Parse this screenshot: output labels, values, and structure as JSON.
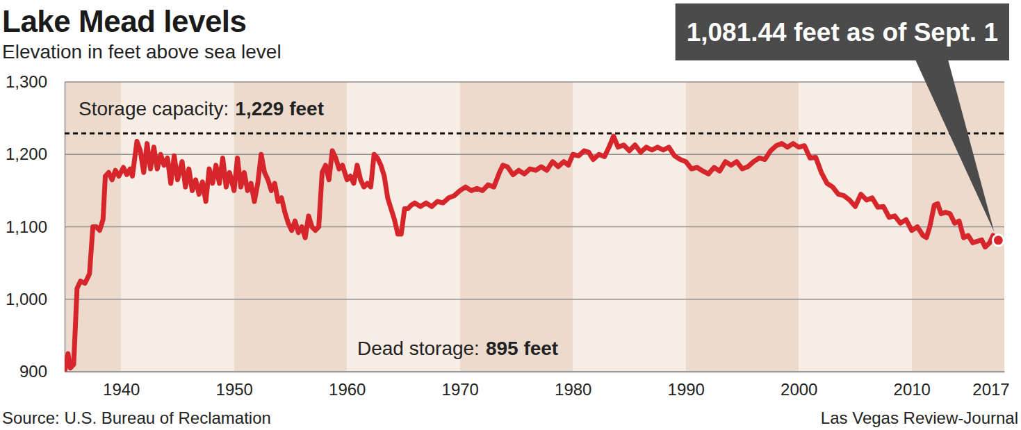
{
  "chart_data": {
    "type": "line",
    "title": "Lake Mead levels",
    "subtitle": "Elevation in feet above sea level",
    "source": "Source: U.S. Bureau of Reclamation",
    "credit": "Las Vegas Review-Journal",
    "color": "#d7262b",
    "grid": true,
    "xlim": [
      1935,
      2018.2
    ],
    "xticks": [
      1940,
      1950,
      1960,
      1970,
      1980,
      1990,
      2000,
      2010,
      2017
    ],
    "ylim": [
      900,
      1300
    ],
    "yticks": [
      900,
      {
        "value": 1000,
        "label": "1,000"
      },
      {
        "value": 1100,
        "label": "1,100"
      },
      {
        "value": 1200,
        "label": "1,200"
      },
      {
        "value": 1300,
        "label": "1,300"
      }
    ],
    "annotations": [
      {
        "text": "Storage capacity:",
        "value_label": "1,229 feet",
        "value": 1229
      },
      {
        "text": "Dead storage:",
        "value_label": "895 feet",
        "value": 895
      }
    ],
    "callout": {
      "text": "1,081.44 feet as of Sept. 1",
      "x": 2017.67,
      "value": 1081.44
    },
    "x": [
      1935.0,
      1935.3,
      1935.5,
      1935.8,
      1936.1,
      1936.4,
      1936.8,
      1937.2,
      1937.5,
      1937.8,
      1938.1,
      1938.4,
      1938.6,
      1938.9,
      1939.2,
      1939.5,
      1939.8,
      1940.2,
      1940.5,
      1940.8,
      1941.0,
      1941.4,
      1941.7,
      1942.0,
      1942.3,
      1942.6,
      1942.9,
      1943.2,
      1943.5,
      1943.8,
      1944.1,
      1944.4,
      1944.7,
      1945.0,
      1945.4,
      1945.7,
      1946.0,
      1946.3,
      1946.6,
      1946.9,
      1947.2,
      1947.5,
      1947.8,
      1948.1,
      1948.4,
      1948.7,
      1949.0,
      1949.3,
      1949.6,
      1950.0,
      1950.3,
      1950.6,
      1950.9,
      1951.2,
      1951.5,
      1951.8,
      1952.1,
      1952.4,
      1952.7,
      1953.0,
      1953.3,
      1953.6,
      1953.9,
      1954.2,
      1954.5,
      1954.8,
      1955.1,
      1955.4,
      1955.7,
      1956.0,
      1956.3,
      1956.6,
      1956.9,
      1957.2,
      1957.5,
      1957.8,
      1958.1,
      1958.4,
      1958.7,
      1959.0,
      1959.3,
      1959.6,
      1960.0,
      1960.3,
      1960.6,
      1960.9,
      1961.2,
      1961.5,
      1961.8,
      1962.1,
      1962.4,
      1962.7,
      1963.0,
      1963.3,
      1963.6,
      1963.9,
      1964.2,
      1964.5,
      1964.8,
      1965.1,
      1965.4,
      1965.7,
      1966.0,
      1966.5,
      1967.0,
      1967.5,
      1968.0,
      1968.5,
      1969.0,
      1969.5,
      1970.0,
      1970.5,
      1971.0,
      1971.5,
      1972.0,
      1972.5,
      1973.0,
      1973.5,
      1973.8,
      1974.2,
      1974.7,
      1975.2,
      1975.7,
      1976.2,
      1976.7,
      1977.2,
      1977.7,
      1978.2,
      1978.7,
      1979.2,
      1979.6,
      1980.0,
      1980.5,
      1981.0,
      1981.4,
      1981.8,
      1982.3,
      1982.8,
      1983.2,
      1983.6,
      1984.0,
      1984.5,
      1985.0,
      1985.5,
      1986.0,
      1986.5,
      1987.0,
      1987.5,
      1988.0,
      1988.5,
      1989.0,
      1989.5,
      1990.0,
      1990.5,
      1991.0,
      1991.5,
      1992.0,
      1992.5,
      1993.0,
      1993.5,
      1994.0,
      1994.5,
      1995.0,
      1995.5,
      1996.0,
      1996.5,
      1997.0,
      1997.5,
      1998.0,
      1998.5,
      1999.0,
      1999.5,
      2000.0,
      2000.5,
      2001.0,
      2001.5,
      2002.0,
      2002.5,
      2003.0,
      2003.5,
      2004.0,
      2004.5,
      2005.0,
      2005.5,
      2006.0,
      2006.5,
      2007.0,
      2007.5,
      2008.0,
      2008.5,
      2009.0,
      2009.5,
      2010.0,
      2010.5,
      2011.0,
      2011.3,
      2011.6,
      2012.0,
      2012.3,
      2012.6,
      2013.0,
      2013.4,
      2013.8,
      2014.2,
      2014.6,
      2015.0,
      2015.4,
      2015.8,
      2016.2,
      2016.5,
      2016.9,
      2017.2
    ],
    "values": [
      900,
      925,
      905,
      910,
      1015,
      1025,
      1022,
      1035,
      1100,
      1100,
      1095,
      1110,
      1170,
      1175,
      1165,
      1178,
      1170,
      1182,
      1172,
      1180,
      1170,
      1218,
      1205,
      1175,
      1215,
      1180,
      1210,
      1180,
      1200,
      1185,
      1195,
      1160,
      1198,
      1165,
      1190,
      1155,
      1180,
      1150,
      1165,
      1145,
      1162,
      1135,
      1180,
      1160,
      1185,
      1160,
      1195,
      1155,
      1175,
      1150,
      1195,
      1155,
      1175,
      1150,
      1160,
      1135,
      1160,
      1200,
      1175,
      1165,
      1150,
      1160,
      1135,
      1140,
      1120,
      1105,
      1095,
      1108,
      1092,
      1100,
      1085,
      1115,
      1100,
      1095,
      1100,
      1175,
      1185,
      1165,
      1205,
      1195,
      1180,
      1185,
      1165,
      1170,
      1160,
      1185,
      1165,
      1155,
      1160,
      1155,
      1200,
      1195,
      1185,
      1170,
      1140,
      1125,
      1110,
      1090,
      1090,
      1125,
      1125,
      1130,
      1133,
      1128,
      1133,
      1128,
      1135,
      1133,
      1140,
      1143,
      1150,
      1155,
      1150,
      1153,
      1150,
      1158,
      1155,
      1175,
      1185,
      1183,
      1172,
      1178,
      1173,
      1180,
      1178,
      1183,
      1178,
      1190,
      1183,
      1190,
      1185,
      1200,
      1198,
      1205,
      1203,
      1193,
      1200,
      1197,
      1210,
      1225,
      1210,
      1213,
      1205,
      1213,
      1203,
      1210,
      1206,
      1210,
      1206,
      1210,
      1198,
      1193,
      1190,
      1180,
      1182,
      1177,
      1173,
      1182,
      1177,
      1190,
      1185,
      1190,
      1180,
      1183,
      1190,
      1195,
      1193,
      1205,
      1212,
      1215,
      1210,
      1215,
      1210,
      1212,
      1195,
      1196,
      1175,
      1160,
      1155,
      1145,
      1143,
      1137,
      1128,
      1145,
      1137,
      1140,
      1127,
      1128,
      1113,
      1115,
      1105,
      1110,
      1095,
      1100,
      1088,
      1085,
      1100,
      1130,
      1132,
      1118,
      1120,
      1118,
      1105,
      1108,
      1085,
      1088,
      1078,
      1080,
      1082,
      1072,
      1078,
      1088
    ]
  }
}
